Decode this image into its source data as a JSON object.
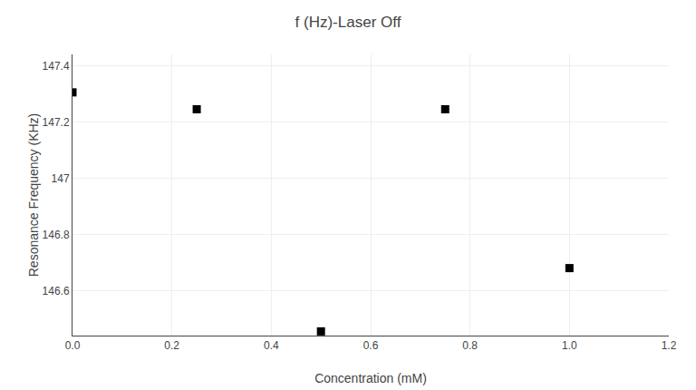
{
  "chart_data": {
    "type": "scatter",
    "title": "f (Hz)-Laser Off",
    "xlabel": "Concentration (mM)",
    "ylabel": "Resonance Frequency (KHz)",
    "x": [
      0.0,
      0.25,
      0.5,
      0.75,
      1.0
    ],
    "values": [
      147.305,
      147.245,
      146.455,
      147.245,
      146.68
    ],
    "xlim": [
      0.0,
      1.2
    ],
    "ylim": [
      146.44,
      147.44
    ],
    "xticks": [
      {
        "value": 0.0,
        "label": "0.0"
      },
      0.2,
      0.4,
      0.6,
      0.8,
      {
        "value": 1.0,
        "label": "1.0"
      },
      1.2
    ],
    "yticks": [
      146.6,
      146.8,
      147.0,
      147.2,
      147.4
    ],
    "marker": "square",
    "color": "#000000",
    "grid": true
  }
}
